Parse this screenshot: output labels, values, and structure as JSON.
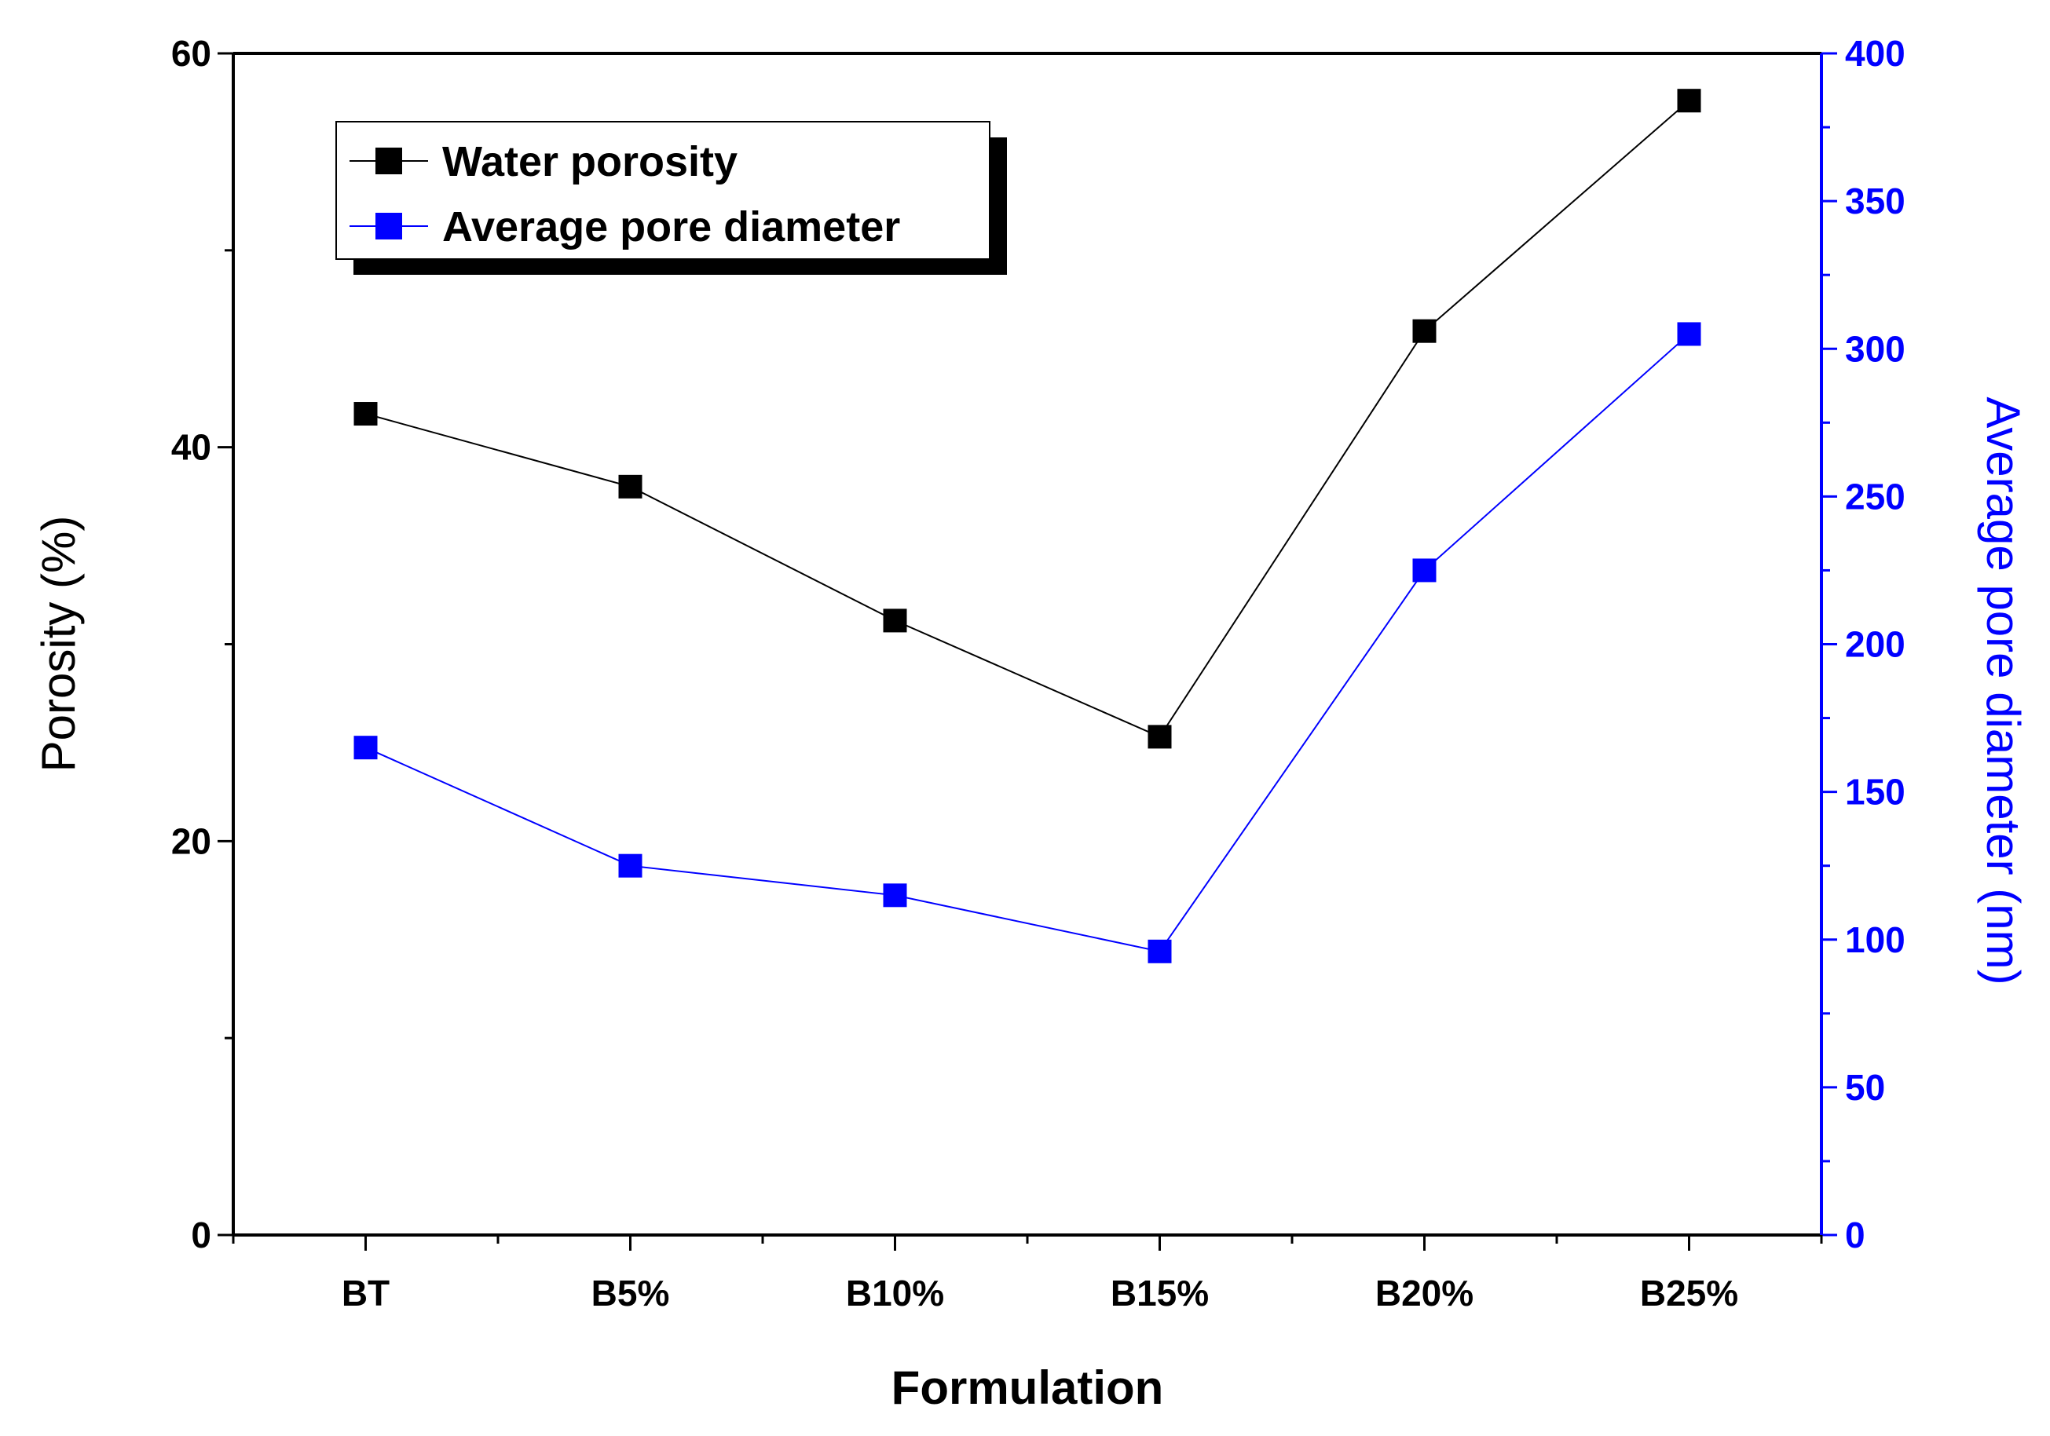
{
  "chart_data": {
    "type": "line",
    "categories": [
      "BT",
      "B5%",
      "B10%",
      "B15%",
      "B20%",
      "B25%"
    ],
    "xlabel": "Formulation",
    "ylabel_left": "Porosity (%)",
    "ylabel_right": "Average pore diameter (nm)",
    "ylim_left": [
      0,
      60
    ],
    "ylim_right": [
      0,
      400
    ],
    "yticks_left": [
      0,
      20,
      40,
      60
    ],
    "yticks_right": [
      0,
      50,
      100,
      150,
      200,
      250,
      300,
      350,
      400
    ],
    "grid": false,
    "legend_position": "top-left",
    "series": [
      {
        "name": "Water porosity",
        "axis": "left",
        "color": "#000000",
        "values": [
          41.7,
          38.0,
          31.2,
          25.3,
          45.9,
          57.6
        ]
      },
      {
        "name": "Average pore diameter",
        "axis": "right",
        "color": "#0000ff",
        "values": [
          165,
          125,
          115,
          96,
          225,
          305
        ]
      }
    ]
  }
}
